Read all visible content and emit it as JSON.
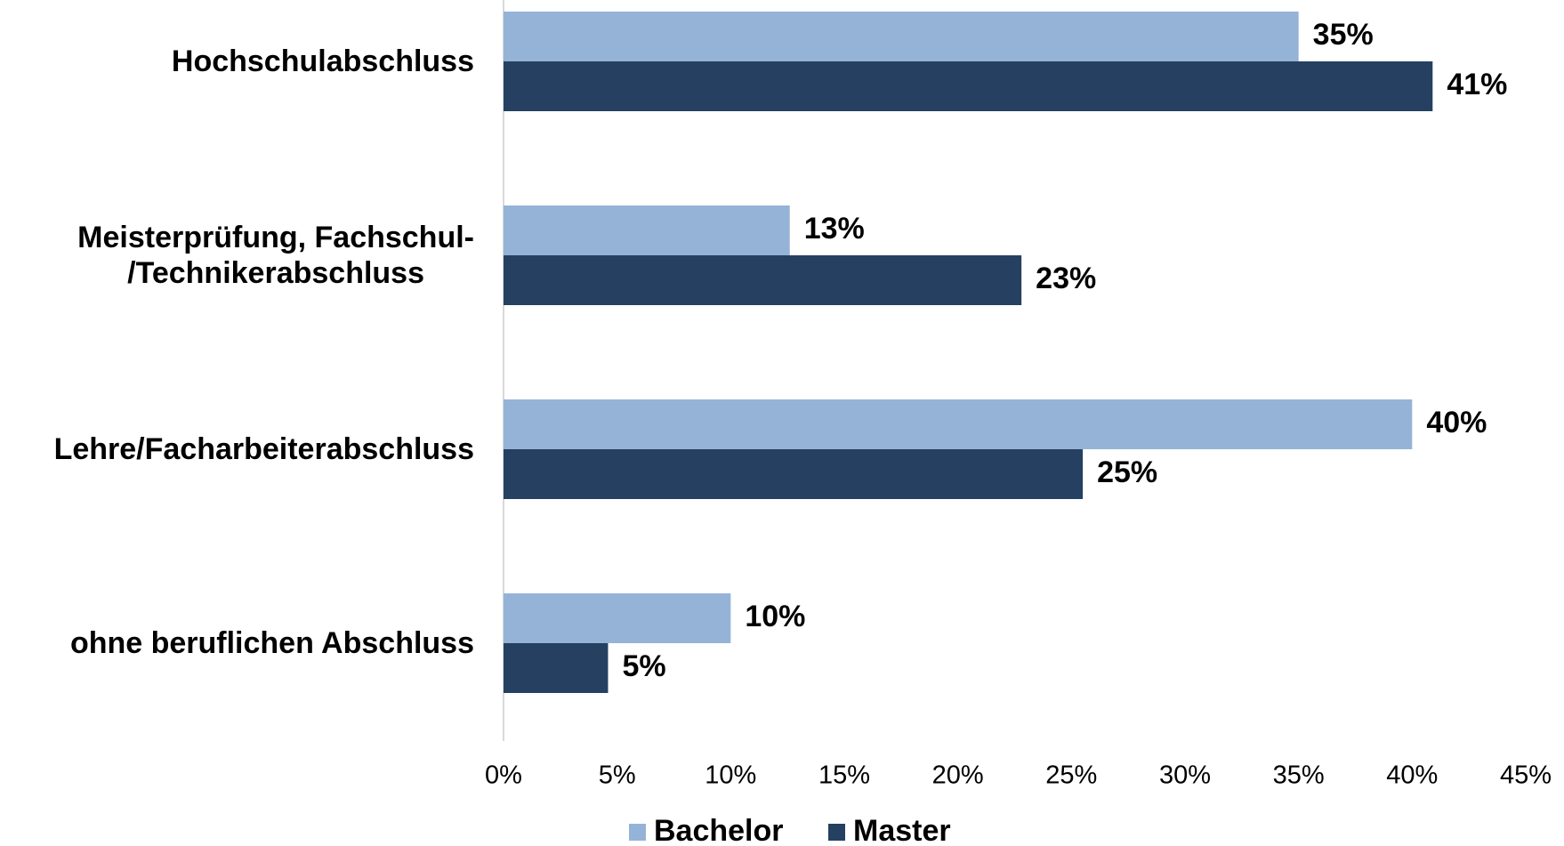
{
  "chart_data": {
    "type": "bar",
    "orientation": "horizontal",
    "categories": [
      "Hochschulabschluss",
      "Meisterprüfung, Fachschul-\n/Technikerabschluss",
      "Lehre/Facharbeiterabschluss",
      "ohne beruflichen Abschluss"
    ],
    "series": [
      {
        "name": "Bachelor",
        "color": "#95b3d7",
        "values": [
          35,
          12.6,
          40,
          10
        ],
        "value_labels": [
          "35%",
          "13%",
          "40%",
          "10%"
        ]
      },
      {
        "name": "Master",
        "color": "#254061",
        "values": [
          40.9,
          22.8,
          25.5,
          4.6
        ],
        "value_labels": [
          "41%",
          "23%",
          "25%",
          "5%"
        ]
      }
    ],
    "xlim": [
      0,
      45
    ],
    "xticks": [
      {
        "value": 0,
        "label": "0%"
      },
      {
        "value": 5,
        "label": "5%"
      },
      {
        "value": 10,
        "label": "10%"
      },
      {
        "value": 15,
        "label": "15%"
      },
      {
        "value": 20,
        "label": "20%"
      },
      {
        "value": 25,
        "label": "25%"
      },
      {
        "value": 30,
        "label": "30%"
      },
      {
        "value": 35,
        "label": "35%"
      },
      {
        "value": 40,
        "label": "40%"
      },
      {
        "value": 45,
        "label": "45%"
      }
    ],
    "grid": false,
    "legend": "bottom"
  }
}
